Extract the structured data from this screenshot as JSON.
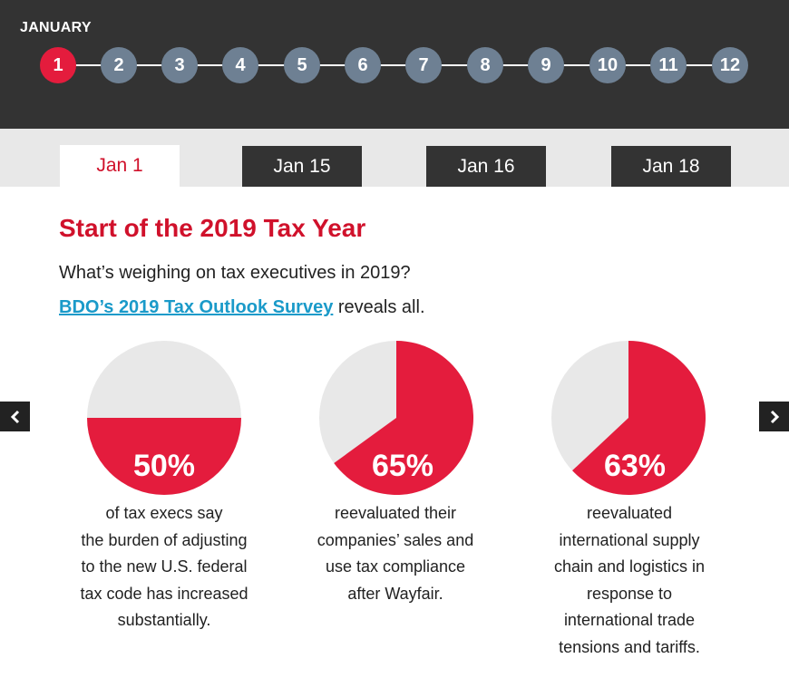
{
  "header": {
    "month": "JANUARY",
    "steps": [
      "1",
      "2",
      "3",
      "4",
      "5",
      "6",
      "7",
      "8",
      "9",
      "10",
      "11",
      "12"
    ],
    "active_step": 0
  },
  "tabs": [
    {
      "label": "Jan 1",
      "active": true
    },
    {
      "label": "Jan 15",
      "active": false
    },
    {
      "label": "Jan 16",
      "active": false
    },
    {
      "label": "Jan 18",
      "active": false
    }
  ],
  "content": {
    "title": "Start of the 2019 Tax Year",
    "question": "What’s weighing on tax executives in 2019?",
    "link_text": "BDO’s 2019 Tax Outlook Survey",
    "link_suffix": " reveals all."
  },
  "chart_data": {
    "type": "pie",
    "items": [
      {
        "value": 50,
        "label": "50%",
        "caption_lines": [
          "of tax execs say",
          "the burden of adjusting",
          "to the new U.S. federal",
          "tax code has increased",
          "substantially."
        ]
      },
      {
        "value": 65,
        "label": "65%",
        "caption_lines": [
          "reevaluated their",
          "companies’ sales and",
          "use tax compliance",
          "after Wayfair."
        ]
      },
      {
        "value": 63,
        "label": "63%",
        "caption_lines": [
          "reevaluated",
          "international supply",
          "chain and logistics in",
          "response to",
          "international trade",
          "tensions and tariffs."
        ]
      }
    ]
  },
  "nav": {
    "prev_icon": "chevron-left-icon",
    "next_icon": "chevron-right-icon"
  },
  "colors": {
    "accent": "#e41c3d",
    "dark": "#333333",
    "pie_bg": "#e8e8e8",
    "step": "#6e8093",
    "link": "#1a9ac9"
  }
}
